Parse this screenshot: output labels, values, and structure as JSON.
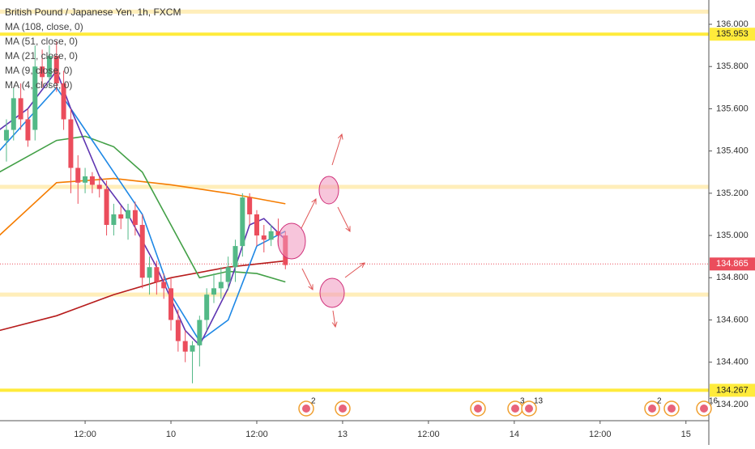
{
  "chart_data": {
    "type": "candlestick",
    "title": "British Pound / Japanese Yen, 1h, FXCM",
    "up_color": "#53b987",
    "down_color": "#eb4d5c",
    "x": [
      1,
      2,
      3,
      4,
      5,
      6,
      7,
      8,
      9,
      10,
      11,
      12,
      13,
      14,
      15,
      16,
      17,
      18,
      19,
      20,
      21,
      22,
      23,
      24,
      25,
      26,
      27,
      28,
      29,
      30,
      31,
      32,
      33,
      34,
      35,
      36,
      37,
      38,
      39,
      40
    ],
    "open": [
      135.45,
      135.5,
      135.65,
      135.55,
      135.5,
      135.8,
      135.75,
      135.85,
      135.72,
      135.55,
      135.32,
      135.25,
      135.28,
      135.24,
      135.22,
      135.05,
      135.1,
      135.08,
      135.12,
      135.05,
      134.8,
      134.85,
      134.78,
      134.75,
      134.6,
      134.5,
      134.45,
      134.48,
      134.6,
      134.72,
      134.75,
      134.78,
      134.85,
      134.95,
      135.18,
      135.1,
      135.0,
      134.98,
      135.02,
      135.0
    ],
    "high": [
      135.55,
      135.7,
      135.72,
      135.6,
      135.9,
      135.88,
      135.9,
      135.92,
      135.78,
      135.6,
      135.38,
      135.32,
      135.3,
      135.28,
      135.26,
      135.15,
      135.14,
      135.15,
      135.16,
      135.1,
      134.9,
      134.88,
      134.82,
      134.8,
      134.65,
      134.55,
      134.5,
      134.62,
      134.75,
      134.82,
      134.85,
      134.9,
      134.98,
      135.2,
      135.2,
      135.12,
      135.05,
      135.05,
      135.08,
      135.02
    ],
    "low": [
      135.35,
      135.45,
      135.5,
      135.42,
      135.45,
      135.7,
      135.7,
      135.68,
      135.5,
      135.2,
      135.15,
      135.2,
      135.2,
      135.18,
      135.0,
      135.0,
      135.03,
      134.98,
      135.0,
      134.75,
      134.72,
      134.72,
      134.7,
      134.55,
      134.45,
      134.4,
      134.3,
      134.38,
      134.55,
      134.68,
      134.7,
      134.74,
      134.78,
      134.9,
      135.05,
      134.95,
      134.92,
      134.95,
      134.95,
      134.84
    ],
    "close": [
      135.5,
      135.65,
      135.55,
      135.45,
      135.8,
      135.75,
      135.85,
      135.72,
      135.55,
      135.32,
      135.25,
      135.28,
      135.24,
      135.22,
      135.05,
      135.1,
      135.08,
      135.12,
      135.05,
      134.8,
      134.85,
      134.78,
      134.75,
      134.6,
      134.5,
      134.45,
      134.48,
      134.6,
      134.72,
      134.75,
      134.78,
      134.85,
      134.95,
      135.18,
      135.1,
      135.0,
      134.98,
      135.02,
      135.0,
      134.86
    ],
    "series": [
      {
        "name": "MA (108, close, 0)",
        "color": "#b71c1c",
        "x": [
          0,
          8,
          16,
          24,
          32,
          40
        ],
        "values": [
          134.55,
          134.62,
          134.72,
          134.8,
          134.85,
          134.88
        ]
      },
      {
        "name": "MA (51, close, 0)",
        "color": "#f57c00",
        "x": [
          0,
          8,
          16,
          24,
          32,
          40
        ],
        "values": [
          135.0,
          135.25,
          135.27,
          135.24,
          135.2,
          135.15
        ]
      },
      {
        "name": "MA (21, close, 0)",
        "color": "#43a047",
        "x": [
          0,
          8,
          12,
          16,
          20,
          24,
          28,
          32,
          36,
          40
        ],
        "values": [
          135.3,
          135.45,
          135.47,
          135.42,
          135.3,
          135.05,
          134.8,
          134.83,
          134.82,
          134.78
        ]
      },
      {
        "name": "MA (9, close, 0)",
        "color": "#1e88e5",
        "x": [
          0,
          4,
          8,
          12,
          16,
          20,
          24,
          28,
          32,
          36,
          40
        ],
        "values": [
          135.4,
          135.55,
          135.7,
          135.5,
          135.3,
          135.1,
          134.72,
          134.5,
          134.6,
          134.95,
          135.02
        ]
      },
      {
        "name": "MA (4, close, 0)",
        "color": "#5e35b1",
        "x": [
          0,
          4,
          8,
          10,
          14,
          18,
          22,
          26,
          28,
          32,
          35,
          37,
          40
        ],
        "values": [
          135.5,
          135.6,
          135.78,
          135.6,
          135.28,
          135.1,
          134.85,
          134.55,
          134.48,
          134.75,
          135.05,
          135.08,
          134.98
        ]
      }
    ],
    "levels": [
      {
        "value": 136.06,
        "style": "thin"
      },
      {
        "value": 135.953,
        "style": "thick",
        "label": "135.953"
      },
      {
        "value": 135.23,
        "style": "thin"
      },
      {
        "value": 134.72,
        "style": "thin"
      },
      {
        "value": 134.267,
        "style": "thick",
        "label": "134.267"
      }
    ],
    "last_price": {
      "value": 134.865,
      "label": "134.865"
    },
    "xlim": [
      0.1,
      99.2
    ],
    "ylim": [
      134.123,
      136.115
    ],
    "xticks": [
      {
        "value": 12,
        "label": "12:00"
      },
      {
        "value": 24,
        "label": "10"
      },
      {
        "value": 36,
        "label": "12:00"
      },
      {
        "value": 48,
        "label": "13"
      },
      {
        "value": 60,
        "label": "12:00"
      },
      {
        "value": 72,
        "label": "14"
      },
      {
        "value": 84,
        "label": "12:00"
      },
      {
        "value": 96,
        "label": "15"
      }
    ],
    "yticks": [
      {
        "value": 134.2,
        "label": "134.200"
      },
      {
        "value": 134.4,
        "label": "134.400"
      },
      {
        "value": 134.6,
        "label": "134.600"
      },
      {
        "value": 134.8,
        "label": "134.800"
      },
      {
        "value": 135,
        "label": "135.000"
      },
      {
        "value": 135.2,
        "label": "135.200"
      },
      {
        "value": 135.4,
        "label": "135.400"
      },
      {
        "value": 135.6,
        "label": "135.600"
      },
      {
        "value": 135.8,
        "label": "135.800"
      },
      {
        "value": 136,
        "label": "136.000"
      }
    ],
    "event_badges": [
      "2",
      "3",
      "13",
      "2",
      "16"
    ]
  }
}
